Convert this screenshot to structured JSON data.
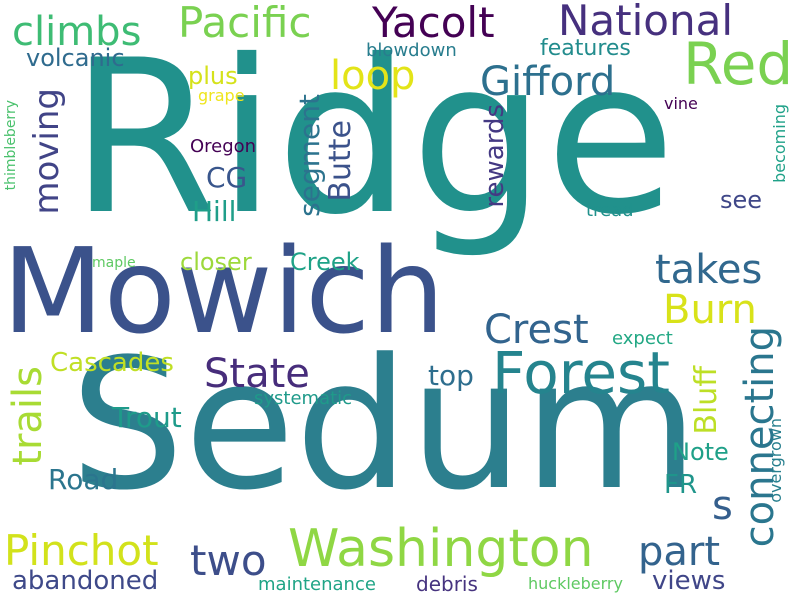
{
  "words": {
    "ridge": {
      "text": "Ridge",
      "color": "#21918c"
    },
    "mowich": {
      "text": "Mowich",
      "color": "#3b528b"
    },
    "sedum": {
      "text": "Sedum",
      "color": "#2c7f8e"
    },
    "washington": {
      "text": "Washington",
      "color": "#8fd744"
    },
    "forest": {
      "text": "Forest",
      "color": "#25848e"
    },
    "red": {
      "text": "Red",
      "color": "#7ad151"
    },
    "pacific": {
      "text": "Pacific",
      "color": "#7ad151"
    },
    "yacolt": {
      "text": "Yacolt",
      "color": "#440154"
    },
    "national": {
      "text": "National",
      "color": "#46307e"
    },
    "gifford": {
      "text": "Gifford",
      "color": "#2d708e"
    },
    "pinchot": {
      "text": "Pinchot",
      "color": "#d2e21b"
    },
    "climbs": {
      "text": "climbs",
      "color": "#3ebc74"
    },
    "loop": {
      "text": "loop",
      "color": "#e3e418"
    },
    "state": {
      "text": "State",
      "color": "#472d7b"
    },
    "crest": {
      "text": "Crest",
      "color": "#32648e"
    },
    "takes": {
      "text": "takes",
      "color": "#31688e"
    },
    "burn": {
      "text": "Burn",
      "color": "#d8e219"
    },
    "part": {
      "text": "part",
      "color": "#33638d"
    },
    "two": {
      "text": "two",
      "color": "#3d4e8a"
    },
    "connecting": {
      "text": "connecting",
      "color": "#2a768e"
    },
    "trails": {
      "text": "trails",
      "color": "#a8db34"
    },
    "moving": {
      "text": "moving",
      "color": "#414487"
    },
    "cascades": {
      "text": "Cascades",
      "color": "#c0df25"
    },
    "abandoned": {
      "text": "abandoned",
      "color": "#3e4989"
    },
    "views": {
      "text": "views",
      "color": "#404688"
    },
    "s": {
      "text": "s",
      "color": "#355f8d"
    },
    "butte": {
      "text": "Butte",
      "color": "#3b528b"
    },
    "segment": {
      "text": "segment",
      "color": "#2c738e"
    },
    "rewards": {
      "text": "rewards",
      "color": "#443983"
    },
    "bluff": {
      "text": "Bluff",
      "color": "#bddf26"
    },
    "volcanic": {
      "text": "volcanic",
      "color": "#2f6b8e"
    },
    "features": {
      "text": "features",
      "color": "#228c8d"
    },
    "plus": {
      "text": "plus",
      "color": "#d5e21a"
    },
    "cg": {
      "text": "CG",
      "color": "#39568c"
    },
    "hill": {
      "text": "Hill",
      "color": "#1f9e89"
    },
    "closer": {
      "text": "closer",
      "color": "#9dd93b"
    },
    "creek": {
      "text": "Creek",
      "color": "#1fa287"
    },
    "trout": {
      "text": "Trout",
      "color": "#1e9b8a"
    },
    "road": {
      "text": "Road",
      "color": "#2b758e"
    },
    "top": {
      "text": "top",
      "color": "#2e6e8e"
    },
    "note": {
      "text": "Note",
      "color": "#1fa088"
    },
    "fr": {
      "text": "FR",
      "color": "#1f958b"
    },
    "see": {
      "text": "see",
      "color": "#3f4788"
    },
    "blowdown": {
      "text": "blowdown",
      "color": "#287d8e"
    },
    "grape": {
      "text": "grape",
      "color": "#efe51c"
    },
    "oregon": {
      "text": "Oregon",
      "color": "#440154"
    },
    "expect": {
      "text": "expect",
      "color": "#22a884"
    },
    "systematic": {
      "text": "systematic",
      "color": "#1f9a8a"
    },
    "maintenance": {
      "text": "maintenance",
      "color": "#20a486"
    },
    "debris": {
      "text": "debris",
      "color": "#46337f"
    },
    "huckleberry": {
      "text": "huckleberry",
      "color": "#5ec962"
    },
    "tread": {
      "text": "tread",
      "color": "#21918c"
    },
    "maple": {
      "text": "maple",
      "color": "#5ec962"
    },
    "vine": {
      "text": "vine",
      "color": "#440154"
    },
    "thimbleberry": {
      "text": "thimbleberry",
      "color": "#4ac16d"
    },
    "becoming": {
      "text": "becoming",
      "color": "#1fa188"
    },
    "overgrown": {
      "text": "overgrown",
      "color": "#277f8e"
    }
  }
}
